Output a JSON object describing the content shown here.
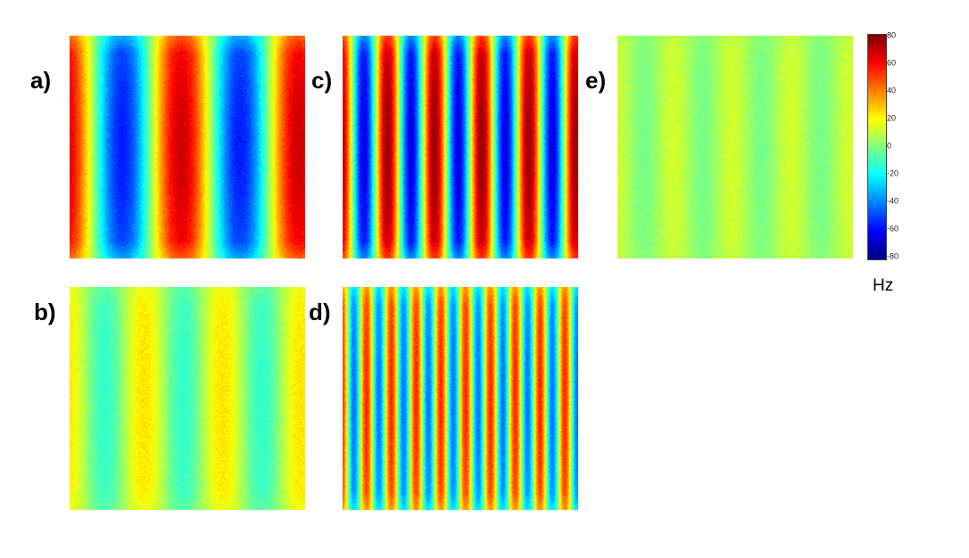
{
  "panels": [
    {
      "label": "a)",
      "stripe_cycles": 2,
      "amplitude_hz": 62
    },
    {
      "label": "b)",
      "stripe_cycles": 3,
      "amplitude_hz": 18
    },
    {
      "label": "c)",
      "stripe_cycles": 5,
      "amplitude_hz": 70
    },
    {
      "label": "d)",
      "stripe_cycles": 9.5,
      "amplitude_hz": 48
    },
    {
      "label": "e)",
      "stripe_cycles": 4,
      "amplitude_hz": 7
    }
  ],
  "colorbar": {
    "colormap": "jet",
    "min": -80,
    "max": 80,
    "ticks": [
      "80",
      "60",
      "40",
      "20",
      "0",
      "-20",
      "-40",
      "-60",
      "-80"
    ],
    "unit": "Hz"
  }
}
